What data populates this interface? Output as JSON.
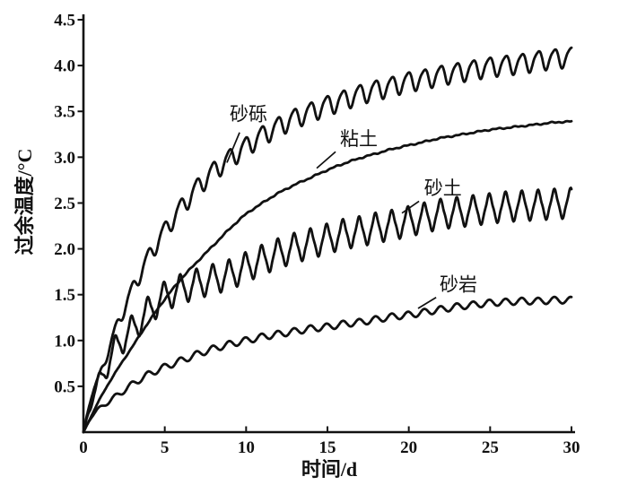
{
  "chart_data": {
    "type": "line",
    "title": "",
    "xlabel": "时间/d",
    "ylabel": "过余温度/°C",
    "xlim": [
      0,
      30
    ],
    "ylim": [
      0,
      4.5
    ],
    "x_ticks": [
      0,
      5,
      10,
      15,
      20,
      25,
      30
    ],
    "x_tick_labels": [
      "0",
      "5",
      "10",
      "15",
      "20",
      "25",
      "30"
    ],
    "y_ticks": [
      0.5,
      1.0,
      1.5,
      2.0,
      2.5,
      3.0,
      3.5,
      4.0,
      4.5
    ],
    "y_tick_labels": [
      "0.5",
      "1.0",
      "1.5",
      "2.0",
      "2.5",
      "3.0",
      "3.5",
      "4.0",
      "4.5"
    ],
    "grid": false,
    "legend": "inline-labels-with-pointer-lines",
    "line_color": "#111111",
    "background": "#ffffff",
    "series": [
      {
        "id": "gravel",
        "name": "砂砾",
        "points": [
          [
            0,
            0
          ],
          [
            0.5,
            0.4
          ],
          [
            1,
            0.62
          ],
          [
            2,
            1.13
          ],
          [
            3,
            1.55
          ],
          [
            4,
            1.91
          ],
          [
            5,
            2.2
          ],
          [
            6,
            2.45
          ],
          [
            7,
            2.67
          ],
          [
            8,
            2.85
          ],
          [
            9,
            2.99
          ],
          [
            10,
            3.12
          ],
          [
            11,
            3.24
          ],
          [
            12,
            3.34
          ],
          [
            13,
            3.43
          ],
          [
            14,
            3.5
          ],
          [
            15,
            3.57
          ],
          [
            16,
            3.63
          ],
          [
            17,
            3.69
          ],
          [
            18,
            3.74
          ],
          [
            19,
            3.78
          ],
          [
            20,
            3.83
          ],
          [
            21,
            3.86
          ],
          [
            22,
            3.9
          ],
          [
            23,
            3.93
          ],
          [
            24,
            3.96
          ],
          [
            25,
            3.99
          ],
          [
            26,
            4.01
          ],
          [
            27,
            4.03
          ],
          [
            28,
            4.06
          ],
          [
            29,
            4.08
          ],
          [
            30,
            4.1
          ]
        ],
        "oscillation": {
          "period_d": 1,
          "amplitude": 0.11,
          "ramp_d": 2.2,
          "shape": "organic"
        },
        "label": {
          "text": "砂砾",
          "x": 10.15,
          "y": 3.47,
          "pointer": [
            [
              9.6,
              3.27
            ],
            [
              8.82,
              2.94
            ]
          ]
        }
      },
      {
        "id": "clay",
        "name": "粘土",
        "points": [
          [
            0,
            0
          ],
          [
            0.5,
            0.18
          ],
          [
            1,
            0.36
          ],
          [
            2,
            0.66
          ],
          [
            3,
            0.93
          ],
          [
            4,
            1.2
          ],
          [
            5,
            1.45
          ],
          [
            6,
            1.67
          ],
          [
            7,
            1.86
          ],
          [
            8,
            2.04
          ],
          [
            9,
            2.22
          ],
          [
            10,
            2.38
          ],
          [
            11,
            2.5
          ],
          [
            12,
            2.61
          ],
          [
            13,
            2.7
          ],
          [
            14,
            2.78
          ],
          [
            15,
            2.86
          ],
          [
            16,
            2.93
          ],
          [
            17,
            2.99
          ],
          [
            18,
            3.04
          ],
          [
            19,
            3.09
          ],
          [
            20,
            3.13
          ],
          [
            21,
            3.17
          ],
          [
            22,
            3.21
          ],
          [
            23,
            3.24
          ],
          [
            24,
            3.27
          ],
          [
            25,
            3.3
          ],
          [
            26,
            3.32
          ],
          [
            27,
            3.34
          ],
          [
            28,
            3.36
          ],
          [
            29,
            3.38
          ],
          [
            30,
            3.39
          ]
        ],
        "oscillation": {
          "period_d": 1,
          "amplitude": 0.009,
          "ramp_d": 2,
          "shape": "noisy"
        },
        "label": {
          "text": "粘土",
          "x": 16.93,
          "y": 3.2,
          "pointer": [
            [
              15.5,
              3.06
            ],
            [
              14.34,
              2.88
            ]
          ]
        }
      },
      {
        "id": "sand",
        "name": "砂土",
        "points": [
          [
            0,
            0
          ],
          [
            0.5,
            0.35
          ],
          [
            1,
            0.55
          ],
          [
            2,
            0.92
          ],
          [
            3,
            1.12
          ],
          [
            4,
            1.32
          ],
          [
            5,
            1.48
          ],
          [
            6,
            1.56
          ],
          [
            7,
            1.62
          ],
          [
            8,
            1.67
          ],
          [
            9,
            1.72
          ],
          [
            10,
            1.8
          ],
          [
            11,
            1.88
          ],
          [
            12,
            1.95
          ],
          [
            13,
            2.01
          ],
          [
            14,
            2.06
          ],
          [
            15,
            2.11
          ],
          [
            16,
            2.16
          ],
          [
            17,
            2.19
          ],
          [
            18,
            2.23
          ],
          [
            19,
            2.26
          ],
          [
            20,
            2.3
          ],
          [
            21,
            2.34
          ],
          [
            22,
            2.38
          ],
          [
            23,
            2.4
          ],
          [
            24,
            2.42
          ],
          [
            25,
            2.44
          ],
          [
            26,
            2.46
          ],
          [
            27,
            2.47
          ],
          [
            28,
            2.48
          ],
          [
            29,
            2.49
          ],
          [
            30,
            2.5
          ]
        ],
        "oscillation": {
          "period_d": 1,
          "amplitude": 0.15,
          "ramp_d": 0.9,
          "shape": "sharp"
        },
        "label": {
          "text": "砂土",
          "x": 22.1,
          "y": 2.66,
          "pointer": [
            [
              20.63,
              2.52
            ],
            [
              19.58,
              2.39
            ]
          ]
        }
      },
      {
        "id": "sandstone",
        "name": "砂岩",
        "points": [
          [
            0,
            0
          ],
          [
            0.5,
            0.17
          ],
          [
            1,
            0.26
          ],
          [
            2,
            0.39
          ],
          [
            3,
            0.52
          ],
          [
            4,
            0.63
          ],
          [
            5,
            0.71
          ],
          [
            6,
            0.78
          ],
          [
            7,
            0.85
          ],
          [
            8,
            0.91
          ],
          [
            9,
            0.96
          ],
          [
            10,
            1.0
          ],
          [
            11,
            1.04
          ],
          [
            12,
            1.07
          ],
          [
            13,
            1.1
          ],
          [
            14,
            1.13
          ],
          [
            15,
            1.15
          ],
          [
            16,
            1.18
          ],
          [
            17,
            1.2
          ],
          [
            18,
            1.23
          ],
          [
            19,
            1.26
          ],
          [
            20,
            1.28
          ],
          [
            21,
            1.31
          ],
          [
            22,
            1.34
          ],
          [
            23,
            1.37
          ],
          [
            24,
            1.39
          ],
          [
            25,
            1.41
          ],
          [
            26,
            1.42
          ],
          [
            27,
            1.43
          ],
          [
            28,
            1.43
          ],
          [
            29,
            1.44
          ],
          [
            30,
            1.44
          ]
        ],
        "oscillation": {
          "period_d": 1,
          "amplitude": 0.036,
          "ramp_d": 1.2,
          "shape": "sine"
        },
        "label": {
          "text": "砂岩",
          "x": 23.05,
          "y": 1.61,
          "pointer": [
            [
              21.68,
              1.47
            ],
            [
              20.57,
              1.35
            ]
          ]
        }
      }
    ]
  }
}
